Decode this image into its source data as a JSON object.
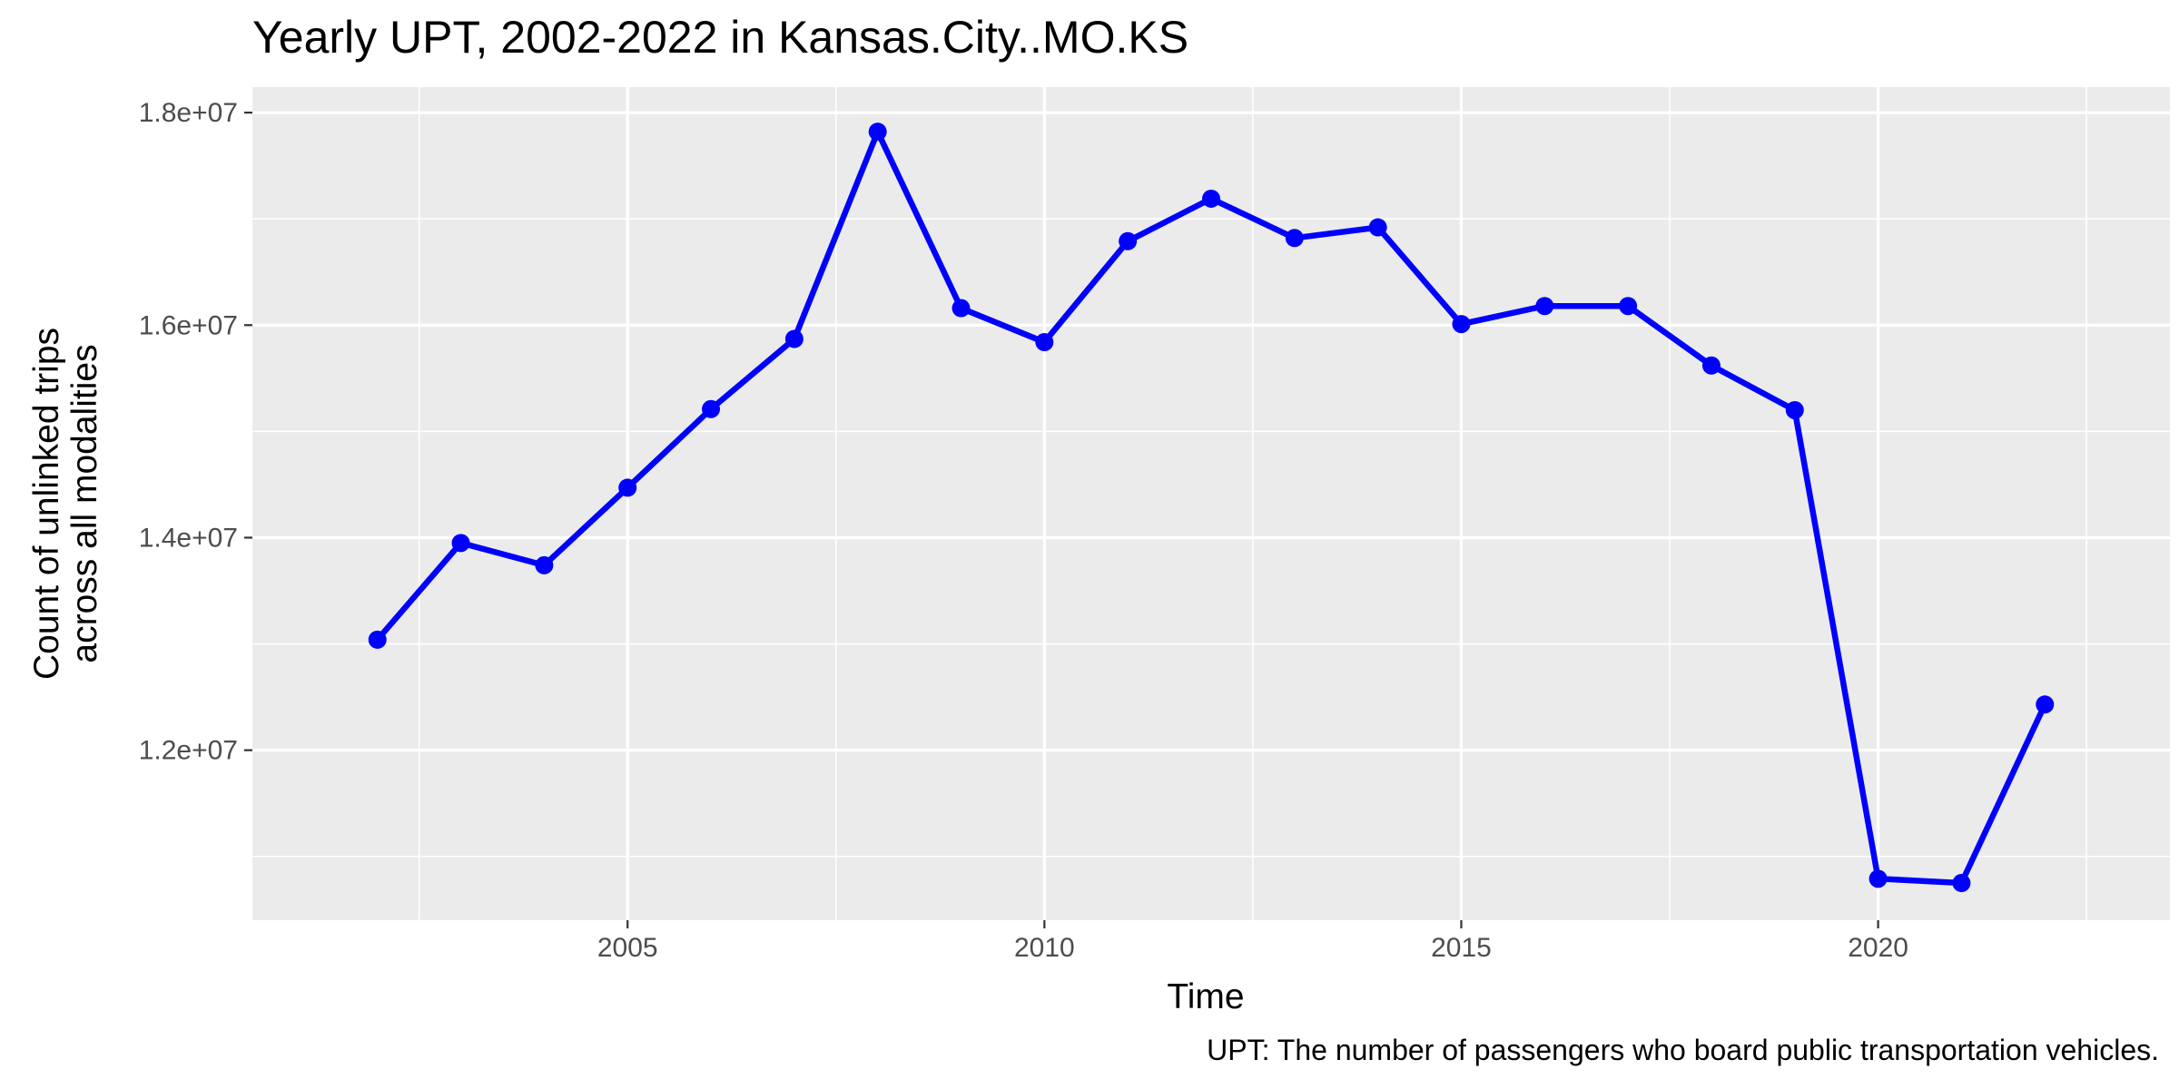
{
  "chart_data": {
    "type": "line",
    "title": "Yearly UPT, 2002-2022 in Kansas.City..MO.KS",
    "xlabel": "Time",
    "ylabel_lines": [
      "Count of unlinked trips",
      "across all modalities"
    ],
    "caption": "UPT: The number of passengers who board public transportation vehicles.",
    "x": [
      2002,
      2003,
      2004,
      2005,
      2006,
      2007,
      2008,
      2009,
      2010,
      2011,
      2012,
      2013,
      2014,
      2015,
      2016,
      2017,
      2018,
      2019,
      2020,
      2021,
      2022
    ],
    "series": [
      {
        "values": [
          13040000,
          13950000,
          13740000,
          14470000,
          15210000,
          15870000,
          17820000,
          16160000,
          15840000,
          16790000,
          17190000,
          16820000,
          16920000,
          16010000,
          16180000,
          16180000,
          15620000,
          15200000,
          10790000,
          10750000,
          12430000
        ]
      }
    ],
    "xlim": [
      2000.5,
      2023.5
    ],
    "ylim": [
      10400000,
      18240000
    ],
    "x_ticks": [
      2005,
      2010,
      2015,
      2020
    ],
    "x_tick_labels": [
      "2005",
      "2010",
      "2015",
      "2020"
    ],
    "x_minor_ticks": [
      2002.5,
      2007.5,
      2012.5,
      2017.5,
      2022.5
    ],
    "y_ticks": [
      12000000,
      14000000,
      16000000,
      18000000
    ],
    "y_tick_labels": [
      "1.2e+07",
      "1.4e+07",
      "1.6e+07",
      "1.8e+07"
    ],
    "y_minor_ticks": [
      11000000,
      13000000,
      15000000,
      17000000
    ],
    "grid": true,
    "colors": {
      "line": "#0000ff",
      "panel": "#ebebeb",
      "grid": "#ffffff"
    }
  }
}
